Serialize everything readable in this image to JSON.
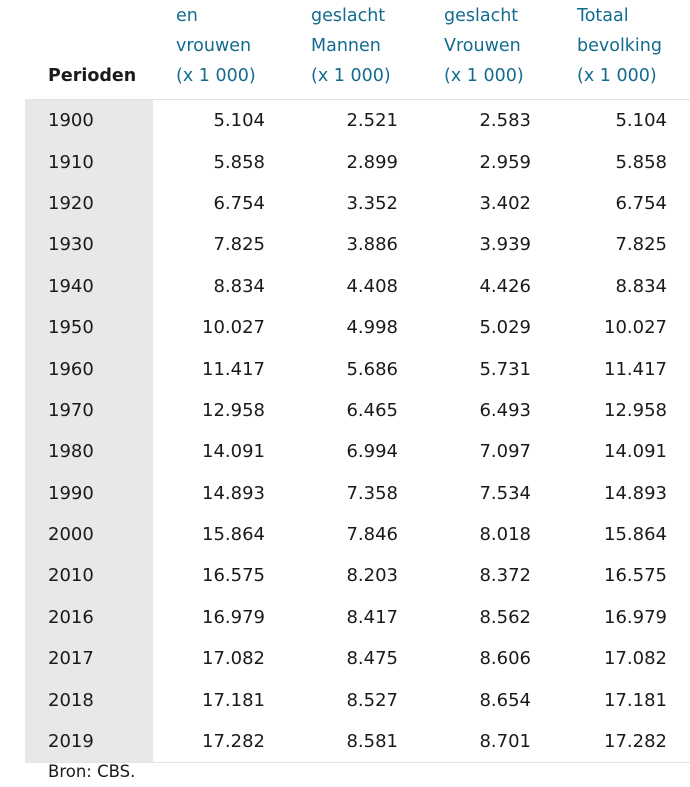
{
  "table": {
    "headers": [
      {
        "lines": [
          "Perioden"
        ]
      },
      {
        "lines": [
          "en",
          "vrouwen",
          "(x 1 000)"
        ]
      },
      {
        "lines": [
          "geslacht",
          "Mannen",
          "(x 1 000)"
        ]
      },
      {
        "lines": [
          "geslacht",
          "Vrouwen",
          "(x 1 000)"
        ]
      },
      {
        "lines": [
          "Totaal",
          "bevolking",
          "(x 1 000)"
        ]
      }
    ],
    "rows": [
      [
        "1900",
        "5.104",
        "2.521",
        "2.583",
        "5.104"
      ],
      [
        "1910",
        "5.858",
        "2.899",
        "2.959",
        "5.858"
      ],
      [
        "1920",
        "6.754",
        "3.352",
        "3.402",
        "6.754"
      ],
      [
        "1930",
        "7.825",
        "3.886",
        "3.939",
        "7.825"
      ],
      [
        "1940",
        "8.834",
        "4.408",
        "4.426",
        "8.834"
      ],
      [
        "1950",
        "10.027",
        "4.998",
        "5.029",
        "10.027"
      ],
      [
        "1960",
        "11.417",
        "5.686",
        "5.731",
        "11.417"
      ],
      [
        "1970",
        "12.958",
        "6.465",
        "6.493",
        "12.958"
      ],
      [
        "1980",
        "14.091",
        "6.994",
        "7.097",
        "14.091"
      ],
      [
        "1990",
        "14.893",
        "7.358",
        "7.534",
        "14.893"
      ],
      [
        "2000",
        "15.864",
        "7.846",
        "8.018",
        "15.864"
      ],
      [
        "2010",
        "16.575",
        "8.203",
        "8.372",
        "16.575"
      ],
      [
        "2016",
        "16.979",
        "8.417",
        "8.562",
        "16.979"
      ],
      [
        "2017",
        "17.082",
        "8.475",
        "8.606",
        "17.082"
      ],
      [
        "2018",
        "17.181",
        "8.527",
        "8.654",
        "17.181"
      ],
      [
        "2019",
        "17.282",
        "8.581",
        "8.701",
        "17.282"
      ]
    ]
  },
  "source": "Bron: CBS.",
  "colors": {
    "header_text": "#136b8f",
    "period_column_bg": "#e8e8e8"
  }
}
